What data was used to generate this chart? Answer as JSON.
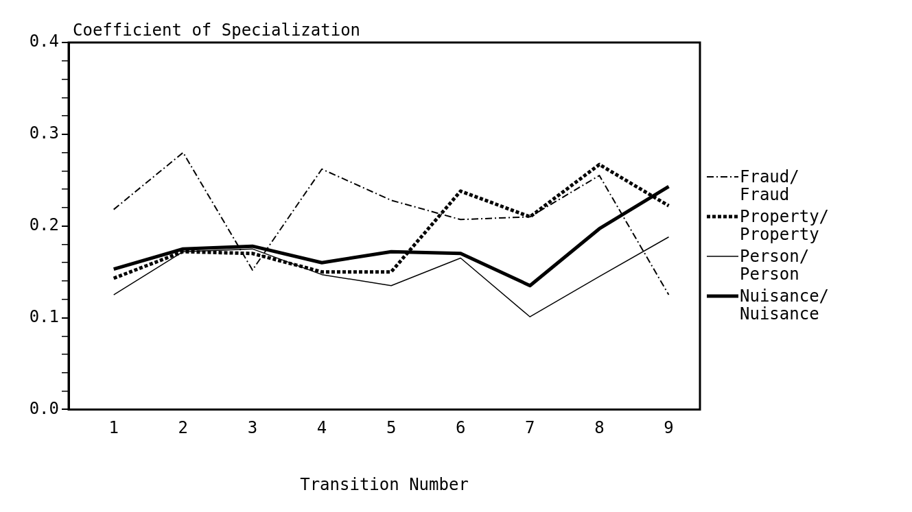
{
  "chart_data": {
    "type": "line",
    "ylabel": "Coefficient of Specialization",
    "xlabel": "Transition Number",
    "x": [
      1,
      2,
      3,
      4,
      5,
      6,
      7,
      8,
      9
    ],
    "xlim": [
      0.35,
      9.45
    ],
    "xticks": [
      1,
      2,
      3,
      4,
      5,
      6,
      7,
      8,
      9
    ],
    "ylim": [
      0,
      0.4
    ],
    "yticks": [
      {
        "value": 0,
        "label": "0.0"
      },
      {
        "value": 0.02,
        "label": null
      },
      {
        "value": 0.04,
        "label": null
      },
      {
        "value": 0.06,
        "label": null
      },
      {
        "value": 0.08,
        "label": null
      },
      {
        "value": 0.1,
        "label": "0.1"
      },
      {
        "value": 0.12,
        "label": null
      },
      {
        "value": 0.14,
        "label": null
      },
      {
        "value": 0.16,
        "label": null
      },
      {
        "value": 0.18,
        "label": null
      },
      {
        "value": 0.2,
        "label": "0.2"
      },
      {
        "value": 0.22,
        "label": null
      },
      {
        "value": 0.24,
        "label": null
      },
      {
        "value": 0.26,
        "label": null
      },
      {
        "value": 0.28,
        "label": null
      },
      {
        "value": 0.3,
        "label": "0.3"
      },
      {
        "value": 0.32,
        "label": null
      },
      {
        "value": 0.34,
        "label": null
      },
      {
        "value": 0.36,
        "label": null
      },
      {
        "value": 0.38,
        "label": null
      },
      {
        "value": 0.4,
        "label": "0.4"
      }
    ],
    "grid": false,
    "legend": "right",
    "marker": "none",
    "series": [
      {
        "name": "Fraud/Fraud",
        "color": "#000000",
        "line_style": "dashed",
        "values": [
          0.218,
          0.28,
          0.152,
          0.262,
          0.228,
          0.207,
          0.21,
          0.255,
          0.125
        ]
      },
      {
        "name": "Property/Property",
        "color": "#000000",
        "line_style": "dotted",
        "values": [
          0.143,
          0.172,
          0.17,
          0.15,
          0.15,
          0.238,
          0.21,
          0.267,
          0.222
        ]
      },
      {
        "name": "Person/Person",
        "color": "#000000",
        "line_style": "solid",
        "values": [
          0.125,
          0.172,
          0.175,
          0.147,
          0.135,
          0.165,
          0.101,
          0.145,
          0.188
        ]
      },
      {
        "name": "Nuisance/Nuisance",
        "color": "#000000",
        "line_style": "solid",
        "values": [
          0.153,
          0.175,
          0.178,
          0.16,
          0.172,
          0.17,
          0.135,
          0.197,
          0.243
        ]
      }
    ]
  }
}
